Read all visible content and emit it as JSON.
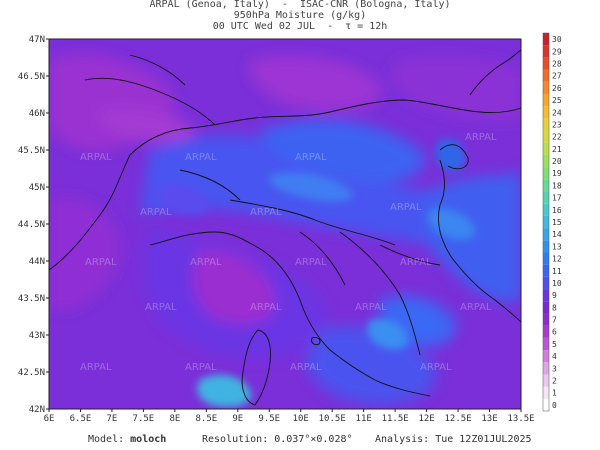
{
  "header": {
    "line1": "ARPAL (Genoa, Italy)  -  ISAC-CNR (Bologna, Italy)",
    "line2": "950hPa Moisture (g/kg)",
    "line3": "00 UTC Wed 02 JUL  -  τ = 12h"
  },
  "axes": {
    "lat_labels": [
      "47N",
      "46.5N",
      "46N",
      "45.5N",
      "45N",
      "44.5N",
      "44N",
      "43.5N",
      "43N",
      "42.5N",
      "42N"
    ],
    "lon_labels": [
      "6E",
      "6.5E",
      "7E",
      "7.5E",
      "8E",
      "8.5E",
      "9E",
      "9.5E",
      "10E",
      "10.5E",
      "11E",
      "11.5E",
      "12E",
      "12.5E",
      "13E",
      "13.5E"
    ],
    "lat_range": [
      42,
      47
    ],
    "lon_range": [
      6,
      13.5
    ]
  },
  "colorbar": {
    "labels": [
      "0",
      "1",
      "2",
      "3",
      "4",
      "5",
      "6",
      "7",
      "8",
      "9",
      "10",
      "11",
      "12",
      "13",
      "14",
      "15",
      "16",
      "17",
      "18",
      "19",
      "20",
      "21",
      "22",
      "23",
      "24",
      "25",
      "26",
      "27",
      "28",
      "29",
      "30"
    ],
    "colors": [
      "#ffffff",
      "#f3e6f5",
      "#e8c9ee",
      "#dca6e6",
      "#cf7fe0",
      "#bd55d8",
      "#a83ad2",
      "#8f2cd0",
      "#7a28d6",
      "#6a34e6",
      "#4f4ff2",
      "#3a66f5",
      "#2f7df3",
      "#2d93ee",
      "#34a7e6",
      "#3fb9dc",
      "#4cc9c8",
      "#58d3b0",
      "#68da95",
      "#7fde78",
      "#9be060",
      "#b8df4c",
      "#d2db40",
      "#e6cf38",
      "#f2bd33",
      "#f7a52f",
      "#f7892c",
      "#f26b2a",
      "#e84d2a",
      "#db322c",
      "#c8202e"
    ]
  },
  "watermark": "ARPAL",
  "footer": {
    "model_label": "Model:",
    "model_value": "moloch",
    "resolution": "Resolution: 0.037°×0.028°",
    "analysis": "Analysis: Tue 12Z01JUL2025"
  }
}
